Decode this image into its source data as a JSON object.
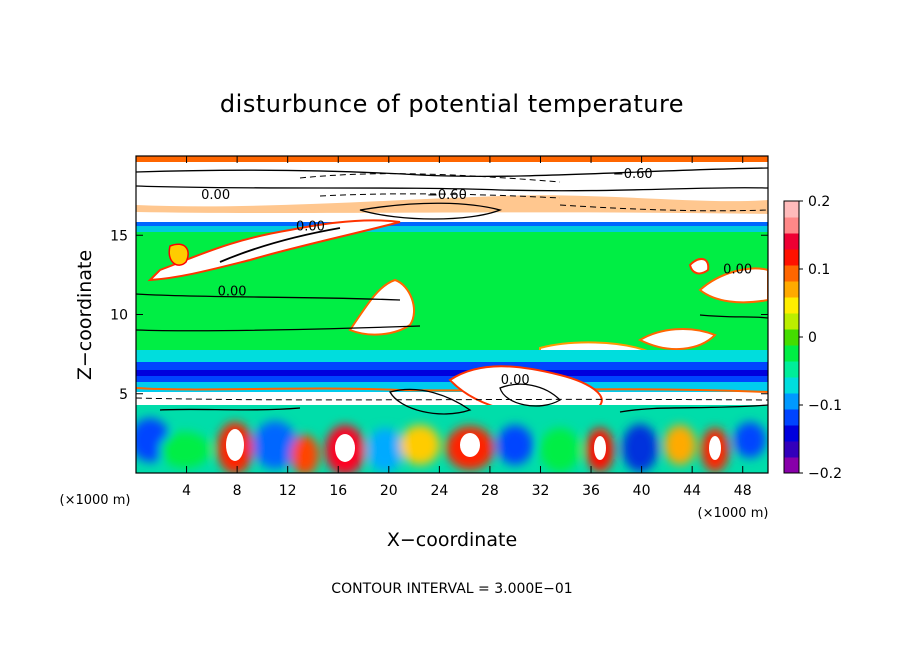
{
  "chart_data": {
    "type": "heatmap",
    "title": "disturbunce of potential temperature",
    "xlabel": "X−coordinate",
    "ylabel": "Z−coordinate",
    "x_unit": "(×1000 m)",
    "z_unit": "(×1000 m)",
    "xlim": [
      0,
      50
    ],
    "ylim": [
      0,
      20
    ],
    "x_ticks": [
      {
        "value": 4,
        "label": "4"
      },
      {
        "value": 8,
        "label": "8"
      },
      {
        "value": 12,
        "label": "12"
      },
      {
        "value": 16,
        "label": "16"
      },
      {
        "value": 20,
        "label": "20"
      },
      {
        "value": 24,
        "label": "24"
      },
      {
        "value": 28,
        "label": "28"
      },
      {
        "value": 32,
        "label": "32"
      },
      {
        "value": 36,
        "label": "36"
      },
      {
        "value": 40,
        "label": "40"
      },
      {
        "value": 44,
        "label": "44"
      },
      {
        "value": 48,
        "label": "48"
      }
    ],
    "y_ticks": [
      {
        "value": 5,
        "label": "5"
      },
      {
        "value": 10,
        "label": "10"
      },
      {
        "value": 15,
        "label": "15"
      }
    ],
    "colorbar": {
      "min": -0.2,
      "max": 0.2,
      "ticks": [
        {
          "value": 0.2,
          "label": "0.2"
        },
        {
          "value": 0.1,
          "label": "0.1"
        },
        {
          "value": 0,
          "label": "0"
        },
        {
          "value": -0.1,
          "label": "−0.1"
        },
        {
          "value": -0.2,
          "label": "−0.2"
        }
      ],
      "colors": [
        "#8800aa",
        "#3300bb",
        "#0000dd",
        "#0044ff",
        "#0099ff",
        "#00dddd",
        "#00ee99",
        "#00ee44",
        "#44dd00",
        "#bbee00",
        "#ffee00",
        "#ffaa00",
        "#ff6600",
        "#ff1100",
        "#ee0033",
        "#ff8888",
        "#ffbbbb"
      ]
    },
    "contour_labels": [
      {
        "x": 39.3,
        "z": 18.6,
        "label": "−0.60"
      },
      {
        "x": 6.3,
        "z": 17.3,
        "label": "0.00"
      },
      {
        "x": 24.6,
        "z": 17.3,
        "label": "−0.60"
      },
      {
        "x": 13.8,
        "z": 15.3,
        "label": "0.00"
      },
      {
        "x": 7.6,
        "z": 11.2,
        "label": "0.00"
      },
      {
        "x": 47.6,
        "z": 12.6,
        "label": "0.00"
      },
      {
        "x": 30.0,
        "z": 5.6,
        "label": "0.00"
      }
    ],
    "contour_interval": "CONTOUR INTERVAL = 3.000E−01"
  }
}
